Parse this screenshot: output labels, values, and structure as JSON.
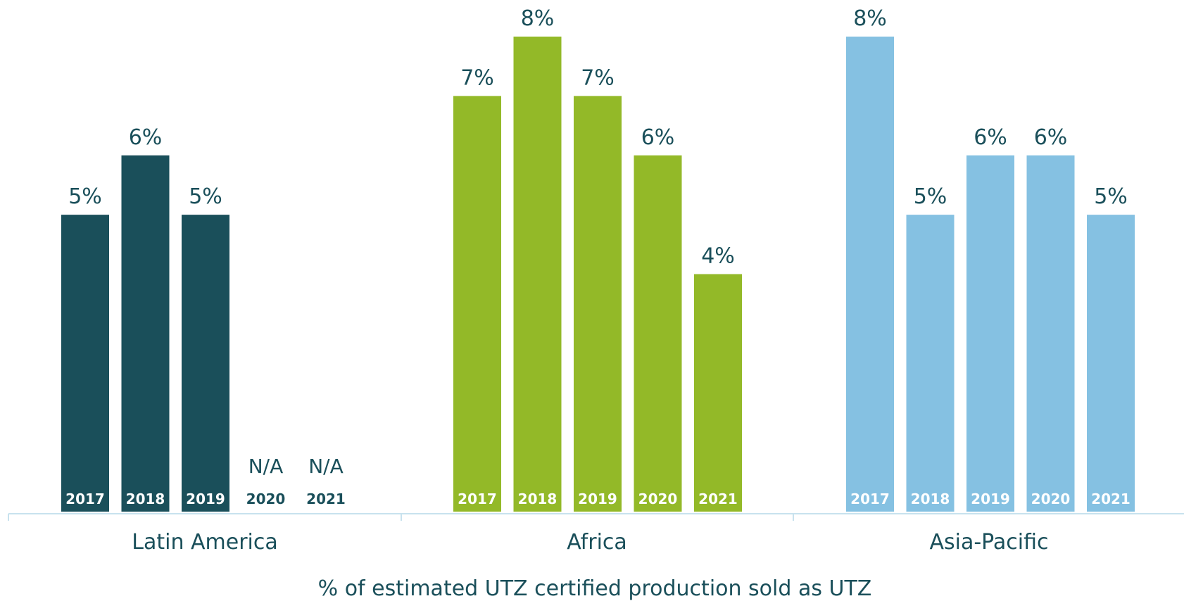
{
  "chart_data": {
    "type": "bar",
    "xlabel": "% of estimated UTZ certified production sold as UTZ",
    "ylim": [
      0,
      8
    ],
    "value_suffix": "%",
    "na_label": "N/A",
    "groups": [
      {
        "name": "Latin America",
        "color": "#1a4f5a",
        "bars": [
          {
            "year": "2017",
            "value": 5
          },
          {
            "year": "2018",
            "value": 6
          },
          {
            "year": "2019",
            "value": 5
          },
          {
            "year": "2020",
            "value": null
          },
          {
            "year": "2021",
            "value": null
          }
        ]
      },
      {
        "name": "Africa",
        "color": "#93b928",
        "bars": [
          {
            "year": "2017",
            "value": 7
          },
          {
            "year": "2018",
            "value": 8
          },
          {
            "year": "2019",
            "value": 7
          },
          {
            "year": "2020",
            "value": 6
          },
          {
            "year": "2021",
            "value": 4
          }
        ]
      },
      {
        "name": "Asia-Pacific",
        "color": "#85c1e2",
        "bars": [
          {
            "year": "2017",
            "value": 8
          },
          {
            "year": "2018",
            "value": 5
          },
          {
            "year": "2019",
            "value": 6
          },
          {
            "year": "2020",
            "value": 6
          },
          {
            "year": "2021",
            "value": 5
          }
        ]
      }
    ]
  }
}
